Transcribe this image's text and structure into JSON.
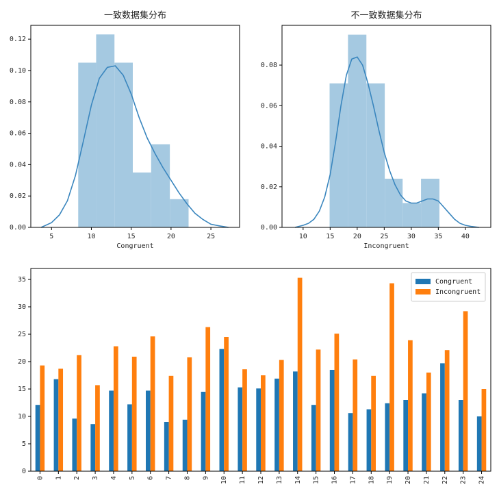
{
  "chart_data": [
    {
      "type": "histogram",
      "title": "一致数据集分布",
      "xlabel": "Congruent",
      "bins": [
        8.35,
        10.6,
        12.9,
        15.2,
        17.5,
        19.85,
        22.2
      ],
      "values": [
        0.105,
        0.123,
        0.105,
        0.035,
        0.053,
        0.018
      ],
      "color": "#a5c9e1",
      "kde": {
        "color": "#3a86be",
        "x": [
          3.7,
          5,
          6,
          7,
          8,
          9,
          10,
          11,
          12,
          13,
          14,
          15,
          16,
          17,
          18,
          19,
          20,
          21,
          22,
          23,
          24,
          25,
          26,
          27.2
        ],
        "y": [
          0,
          0.003,
          0.008,
          0.017,
          0.033,
          0.055,
          0.078,
          0.095,
          0.102,
          0.103,
          0.097,
          0.085,
          0.07,
          0.057,
          0.047,
          0.038,
          0.03,
          0.022,
          0.015,
          0.009,
          0.005,
          0.002,
          0.001,
          0
        ]
      },
      "xlim": [
        2.4,
        28.6
      ],
      "xticks": [
        5,
        10,
        15,
        20,
        25
      ],
      "ylim": [
        0,
        0.1288
      ],
      "yticks": [
        {
          "value": 0,
          "label": "0.00"
        },
        {
          "value": 0.02,
          "label": "0.02"
        },
        {
          "value": 0.04,
          "label": "0.04"
        },
        {
          "value": 0.06,
          "label": "0.06"
        },
        {
          "value": 0.08,
          "label": "0.08"
        },
        {
          "value": 0.1,
          "label": "0.10"
        },
        {
          "value": 0.12,
          "label": "0.12"
        }
      ]
    },
    {
      "type": "histogram",
      "title": "不一致数据集分布",
      "xlabel": "Incongruent",
      "bins": [
        14.9,
        18.3,
        21.7,
        25.1,
        28.4,
        31.8,
        35.2
      ],
      "values": [
        0.071,
        0.095,
        0.071,
        0.024,
        0.012,
        0.024
      ],
      "color": "#a5c9e1",
      "kde": {
        "color": "#3a86be",
        "x": [
          8.5,
          10,
          11,
          12,
          13,
          14,
          15,
          16,
          17,
          18,
          19,
          20,
          21,
          22,
          23,
          24,
          25,
          26,
          27,
          28,
          29,
          30,
          31,
          32,
          33,
          34,
          35,
          36,
          37,
          38,
          39,
          40,
          41,
          42.5
        ],
        "y": [
          0,
          0.001,
          0.002,
          0.004,
          0.008,
          0.015,
          0.026,
          0.042,
          0.06,
          0.075,
          0.083,
          0.084,
          0.08,
          0.071,
          0.06,
          0.048,
          0.037,
          0.028,
          0.021,
          0.016,
          0.013,
          0.012,
          0.012,
          0.013,
          0.014,
          0.014,
          0.013,
          0.01,
          0.007,
          0.004,
          0.002,
          0.001,
          0.0005,
          0
        ]
      },
      "xlim": [
        6.1,
        44.7
      ],
      "xticks": [
        10,
        15,
        20,
        25,
        30,
        35,
        40
      ],
      "ylim": [
        0,
        0.0996
      ],
      "yticks": [
        {
          "value": 0,
          "label": "0.00"
        },
        {
          "value": 0.02,
          "label": "0.02"
        },
        {
          "value": 0.04,
          "label": "0.04"
        },
        {
          "value": 0.06,
          "label": "0.06"
        },
        {
          "value": 0.08,
          "label": "0.08"
        }
      ]
    },
    {
      "type": "bar",
      "categories": [
        "0",
        "1",
        "2",
        "3",
        "4",
        "5",
        "6",
        "7",
        "8",
        "9",
        "10",
        "11",
        "12",
        "13",
        "14",
        "15",
        "16",
        "17",
        "18",
        "19",
        "20",
        "21",
        "22",
        "23",
        "24"
      ],
      "series": [
        {
          "name": "Congruent",
          "color": "#1f77b4",
          "values": [
            12.1,
            16.8,
            9.6,
            8.6,
            14.7,
            12.2,
            14.7,
            9.0,
            9.4,
            14.5,
            22.3,
            15.3,
            15.1,
            16.9,
            18.2,
            12.1,
            18.5,
            10.6,
            11.3,
            12.4,
            13.0,
            14.2,
            19.7,
            13.0,
            10.0
          ]
        },
        {
          "name": "Incongruent",
          "color": "#ff7f0e",
          "values": [
            19.3,
            18.7,
            21.2,
            15.7,
            22.8,
            20.9,
            24.6,
            17.4,
            20.8,
            26.3,
            24.5,
            18.6,
            17.5,
            20.3,
            35.3,
            22.2,
            25.1,
            20.4,
            17.4,
            34.3,
            23.9,
            18.0,
            22.1,
            29.2,
            15.0
          ]
        }
      ],
      "ylim": [
        0,
        37
      ],
      "yticks": [
        0,
        5,
        10,
        15,
        20,
        25,
        30,
        35
      ],
      "legend": "upper right"
    }
  ]
}
